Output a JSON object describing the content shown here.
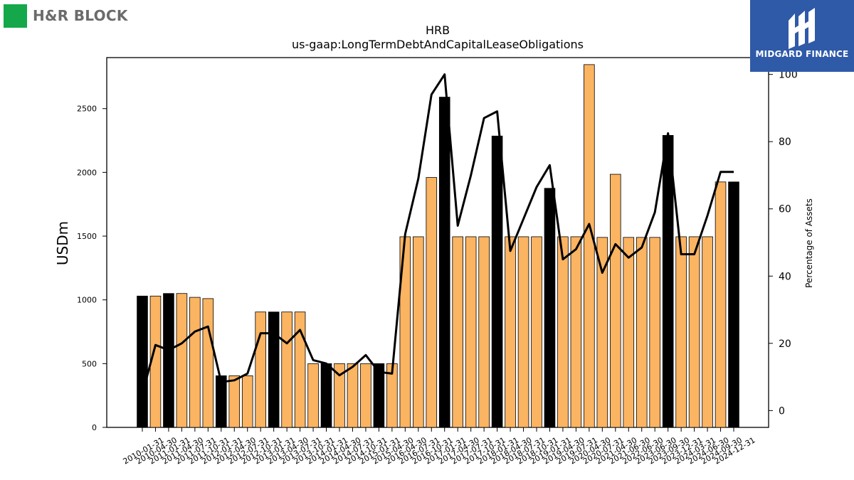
{
  "brand_left": {
    "name": "H&R BLOCK",
    "accent": "#14a84a",
    "text_color": "#6b6b6b",
    "icon": "green-square-logo-icon"
  },
  "brand_right": {
    "name": "MIDGARD FINANCE",
    "background": "#2f5aa8",
    "icon": "midgard-mark-icon"
  },
  "chart_data": {
    "type": "bar",
    "title": "HRB",
    "subtitle": "us-gaap:LongTermDebtAndCapitalLeaseObligations",
    "ylabel": "USDm",
    "y2label": "Percentage of Assets",
    "ylim": [
      0,
      2900
    ],
    "y2lim": [
      -5,
      105
    ],
    "yticks": [
      0,
      500,
      1000,
      1500,
      2000,
      2500
    ],
    "y2ticks": [
      0,
      20,
      40,
      60,
      80,
      100
    ],
    "colors": {
      "annual_bar": "#000000",
      "quarter_bar": "#fbb462",
      "line": "#000000"
    },
    "categories": [
      "2010-01-31",
      "2010-04-30",
      "2011-01-31",
      "2011-04-30",
      "2011-07-31",
      "2011-10-31",
      "2012-01-31",
      "2012-04-30",
      "2012-07-31",
      "2012-10-31",
      "2013-01-31",
      "2013-04-30",
      "2013-07-31",
      "2013-10-31",
      "2014-01-31",
      "2014-04-30",
      "2014-07-31",
      "2014-10-31",
      "2015-01-31",
      "2015-04-30",
      "2016-04-30",
      "2016-07-31",
      "2016-10-31",
      "2017-01-31",
      "2017-04-30",
      "2017-07-31",
      "2017-10-31",
      "2018-01-31",
      "2018-04-30",
      "2018-07-31",
      "2018-10-31",
      "2019-01-31",
      "2019-04-30",
      "2019-07-31",
      "2020-04-30",
      "2020-07-31",
      "2021-04-30",
      "2021-06-30",
      "2022-06-30",
      "2023-06-30",
      "2023-09-30",
      "2023-12-31",
      "2024-03-31",
      "2024-06-30",
      "2024-09-30",
      "2024-12-31"
    ],
    "values": [
      1030,
      1030,
      1050,
      1050,
      1020,
      1010,
      405,
      405,
      405,
      905,
      905,
      905,
      905,
      500,
      500,
      500,
      500,
      500,
      500,
      500,
      1495,
      1495,
      1960,
      2590,
      1495,
      1495,
      1495,
      2285,
      1495,
      1495,
      1495,
      1875,
      1495,
      1495,
      2845,
      1490,
      1985,
      1490,
      1490,
      1490,
      2290,
      1495,
      1495,
      1495,
      1925,
      1925
    ],
    "annual_flags": [
      1,
      0,
      1,
      0,
      0,
      0,
      1,
      0,
      0,
      0,
      1,
      0,
      0,
      0,
      1,
      0,
      0,
      0,
      1,
      0,
      0,
      0,
      0,
      1,
      0,
      0,
      0,
      1,
      0,
      0,
      0,
      1,
      0,
      0,
      0,
      0,
      0,
      0,
      0,
      0,
      1,
      0,
      0,
      0,
      0,
      1
    ],
    "series": [
      {
        "values": [
          5,
          19.5,
          18,
          20,
          23.5,
          25,
          8.5,
          9,
          11,
          23,
          23,
          20,
          24,
          15,
          14,
          10.5,
          13,
          16.5,
          11.5,
          11,
          52.5,
          69,
          94,
          100,
          55,
          70,
          87,
          89,
          47.5,
          57,
          66.5,
          73,
          45,
          48,
          55.5,
          41,
          49.5,
          45.5,
          48.5,
          59,
          82.5,
          46.5,
          46.5,
          58,
          71,
          71
        ]
      }
    ]
  }
}
